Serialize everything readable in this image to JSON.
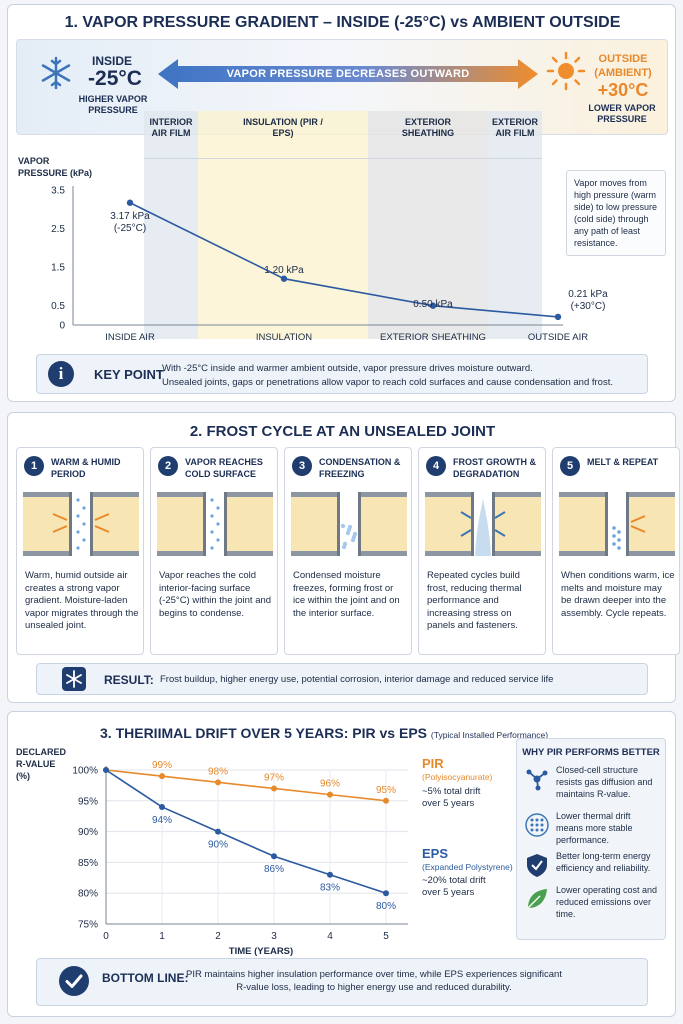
{
  "section1": {
    "title": "1. VAPOR PRESSURE GRADIENT  –  INSIDE (-25°C) vs AMBIENT OUTSIDE",
    "inside": {
      "label": "INSIDE",
      "temp": "-25°C",
      "sub": "HIGHER VAPOR PRESSURE",
      "icon": "snowflake-icon"
    },
    "outside": {
      "label": "OUTSIDE (AMBIENT)",
      "temp": "+30°C",
      "sub": "LOWER VAPOR PRESSURE",
      "icon": "sun-icon"
    },
    "arrow_label": "VAPOR PRESSURE DECREASES OUTWARD",
    "layers": [
      {
        "label": "INTERIOR AIR FILM",
        "color": "#dfe5ed"
      },
      {
        "label": "INSULATION (PIR / EPS)",
        "color": "#fbf1cc"
      },
      {
        "label": "EXTERIOR SHEATHING",
        "color": "#e3e3e3"
      },
      {
        "label": "EXTERIOR AIR FILM",
        "color": "#dfe5ed"
      }
    ],
    "note": "Vapor moves from high pressure (warm side) to low pressure (cold side) through any path of least resistance.",
    "key_point": {
      "label": "KEY POINT",
      "text1": "With -25°C inside and warmer ambient outside, vapor pressure drives moisture outward.",
      "text2": "Unsealed joints, gaps or penetrations allow vapor to reach cold surfaces and cause condensation and frost."
    }
  },
  "chart_data": [
    {
      "type": "line",
      "ylabel": "VAPOR PRESSURE (kPa)",
      "ylim": [
        0,
        3.5
      ],
      "yticks": [
        0,
        0.5,
        1.5,
        2.5,
        3.5
      ],
      "categories": [
        "INSIDE AIR",
        "INSULATION",
        "EXTERIOR SHEATHING",
        "OUTSIDE AIR"
      ],
      "values": [
        3.17,
        1.2,
        0.5,
        0.21
      ],
      "point_labels": [
        "3.17 kPa (-25°C)",
        "1.20 kPa",
        "0.50 kPa",
        "0.21 kPa (+30°C)"
      ],
      "grid": false,
      "color": "#2c5aa0"
    },
    {
      "type": "line",
      "xlabel": "TIME (YEARS)",
      "ylabel": "DECLARED R-VALUE (%)",
      "x": [
        0,
        1,
        2,
        3,
        4,
        5
      ],
      "ylim": [
        75,
        100
      ],
      "yticks": [
        "75%",
        "80%",
        "85%",
        "90%",
        "95%",
        "100%"
      ],
      "series": [
        {
          "name": "PIR",
          "values": [
            100,
            99,
            98,
            97,
            96,
            95
          ],
          "labels": [
            "",
            "99%",
            "98%",
            "97%",
            "96%",
            "95%"
          ],
          "color": "#e8892b"
        },
        {
          "name": "EPS",
          "values": [
            100,
            94,
            90,
            86,
            83,
            80
          ],
          "labels": [
            "",
            "94%",
            "90%",
            "86%",
            "83%",
            "80%"
          ],
          "color": "#2c5aa0"
        }
      ],
      "grid": true
    }
  ],
  "section2": {
    "title": "2. FROST CYCLE AT AN UNSEALED JOINT",
    "steps": [
      {
        "num": "1",
        "title": "WARM & HUMID PERIOD",
        "text": "Warm, humid outside air creates a strong vapor gradient. Moisture-laden vapor migrates through the unsealed joint."
      },
      {
        "num": "2",
        "title": "VAPOR REACHES COLD SURFACE",
        "text": "Vapor reaches the cold interior-facing surface (-25°C) within the joint and begins to condense."
      },
      {
        "num": "3",
        "title": "CONDENSATION & FREEZING",
        "text": "Condensed moisture freezes, forming frost or ice within the joint and on the interior surface."
      },
      {
        "num": "4",
        "title": "FROST GROWTH & DEGRADATION",
        "text": "Repeated cycles build frost, reducing thermal performance and increasing stress on panels and fasteners."
      },
      {
        "num": "5",
        "title": "MELT & REPEAT",
        "text": "When conditions warm, ice melts and moisture may be drawn deeper into the assembly. Cycle repeats."
      }
    ],
    "result": {
      "label": "RESULT:",
      "text": "Frost buildup, higher energy use, potential corrosion, interior damage and reduced service life"
    }
  },
  "section3": {
    "title": "3. THERIIMAL DRIFT OVER 5 YEARS: PIR vs EPS",
    "title_note": "(Typical Installed Performance)",
    "y_title": "DECLARED R-VALUE (%)",
    "pir": {
      "name": "PIR",
      "full": "(Polyisocyanurate)",
      "drift": "~5% total drift over 5 years"
    },
    "eps": {
      "name": "EPS",
      "full": "(Expanded Polystyrene)",
      "drift": "~20% total drift over 5 years"
    },
    "why": {
      "title": "WHY PIR PERFORMS BETTER",
      "items": [
        {
          "icon": "molecule-icon",
          "text": "Closed-cell structure resists gas diffusion and maintains R-value."
        },
        {
          "icon": "cells-icon",
          "text": "Lower thermal drift means more stable performance."
        },
        {
          "icon": "shield-icon",
          "text": "Better long-term energy efficiency and reliability."
        },
        {
          "icon": "leaf-icon",
          "text": "Lower operating cost and reduced emissions over time."
        }
      ]
    },
    "bottom_line": {
      "label": "BOTTOM LINE:",
      "text": "PIR maintains higher insulation performance over time, while EPS experiences significant R-value loss, leading to higher energy use and reduced durability."
    }
  }
}
